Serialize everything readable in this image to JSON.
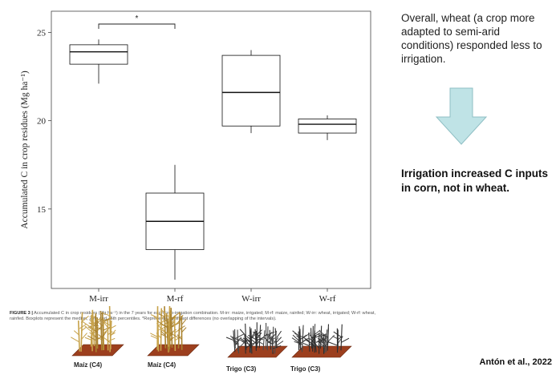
{
  "figure": {
    "caption_label": "FIGURE 3 |",
    "caption_text": "Accumulated C in crop residues (Mg ha⁻¹) in the 7 years for each crop-irrigation combination. M-irr: maize, irrigated; M-rf: maize, rainfed; W-irr: wheat, irrigated; W-rf: wheat, rainfed. Boxplots represent the median, 25th and 75th percentiles. *Represents significant differences (no overlapping of the intervals).",
    "trays": [
      {
        "label": "Maíz (C4)",
        "crop": "maize"
      },
      {
        "label": "Maíz (C4)",
        "crop": "maize"
      },
      {
        "label": "Trigo (C3)",
        "crop": "wheat"
      },
      {
        "label": "Trigo (C3)",
        "crop": "wheat"
      }
    ]
  },
  "chart_data": {
    "type": "boxplot",
    "ylabel": "Accumulated C in crop residues (Mg ha⁻¹)",
    "xlabel": "",
    "categories": [
      "M-irr",
      "M-rf",
      "W-irr",
      "W-rf"
    ],
    "yticks": [
      15,
      20,
      25
    ],
    "ylim": [
      10.5,
      26.2
    ],
    "boxes": [
      {
        "category": "M-irr",
        "min": 22.1,
        "q1": 23.2,
        "median": 23.9,
        "q3": 24.3,
        "max": 24.6
      },
      {
        "category": "M-rf",
        "min": 11.0,
        "q1": 12.7,
        "median": 14.3,
        "q3": 15.9,
        "max": 17.5
      },
      {
        "category": "W-irr",
        "min": 19.3,
        "q1": 19.7,
        "median": 21.6,
        "q3": 23.7,
        "max": 24.0
      },
      {
        "category": "W-rf",
        "min": 18.9,
        "q1": 19.3,
        "median": 19.8,
        "q3": 20.1,
        "max": 20.3
      }
    ],
    "significance": {
      "between": [
        "M-irr",
        "M-rf"
      ],
      "symbol": "*"
    },
    "grid": false,
    "box_color": "#ffffff",
    "line_color": "#111111"
  },
  "side": {
    "note": "Overall, wheat (a crop more adapted to semi-arid conditions) responded less to irrigation.",
    "conclusion": "Irrigation increased C inputs in corn, not in wheat.",
    "citation": "Antón et al., 2022",
    "arrow_color": "#bfe3e6",
    "arrow_stroke": "#8fbfc4"
  }
}
